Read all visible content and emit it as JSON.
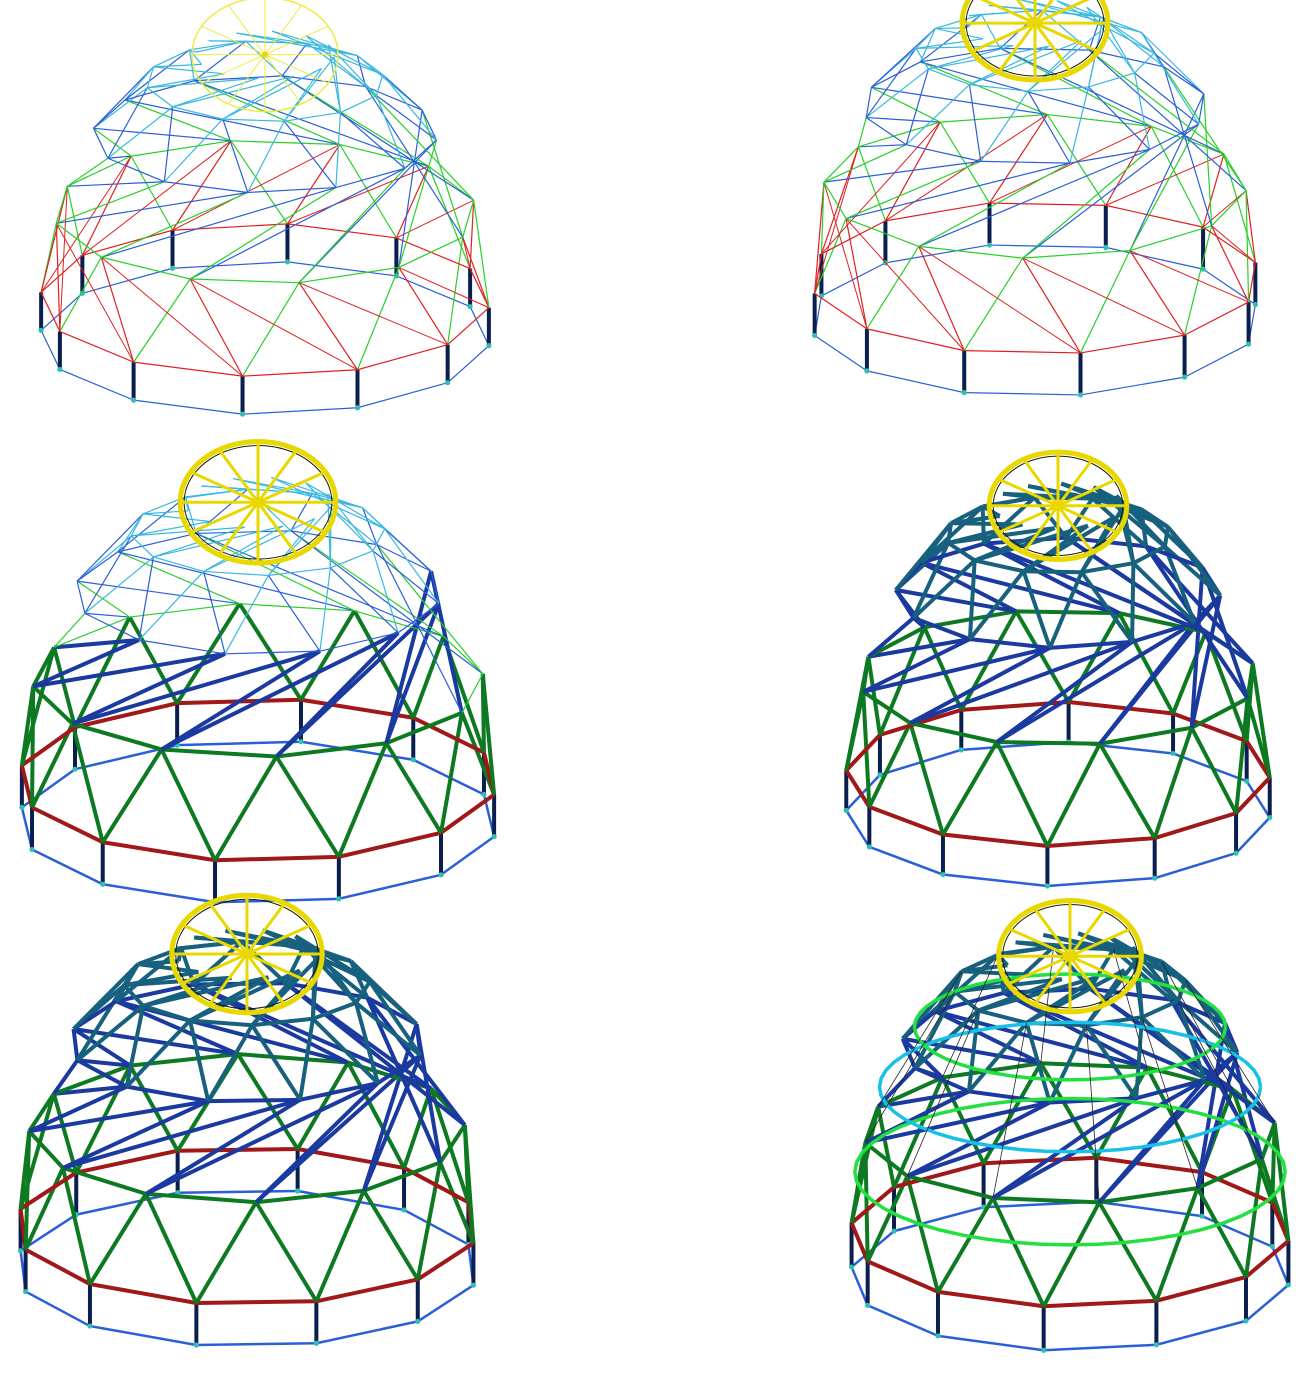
{
  "colors": {
    "background": "#ffffff",
    "ring_outer": "#e02020",
    "ring_mid": "#28d028",
    "ring_inner": "#2a5fd8",
    "ring_top": "#3ab8e0",
    "top_panel": "#f0e840",
    "top_panel_bold": "#e8d800",
    "column": "#0a1e50",
    "base_tie": "#2a5fd8",
    "support_node": "#30c0b0",
    "heavy_outer": "#a01818",
    "heavy_mid": "#0d7a22",
    "heavy_inner": "#1a3aa0",
    "heavy_top": "#17607e",
    "ring_beam_green": "#22e040",
    "ring_beam_cyan": "#18c0e8",
    "thin_black": "#222222"
  },
  "panels": [
    {
      "name": "stage-1-dome",
      "variant": "base",
      "highlight_top": false
    },
    {
      "name": "stage-2-dome",
      "variant": "base",
      "highlight_top": true
    },
    {
      "name": "stage-3-dome",
      "variant": "partial-ribs",
      "highlight_top": true
    },
    {
      "name": "stage-4-dome",
      "variant": "ribbed",
      "highlight_top": true
    },
    {
      "name": "stage-5-dome",
      "variant": "ribbed-full",
      "highlight_top": true
    },
    {
      "name": "stage-6-dome",
      "variant": "ribbed-with-rings",
      "highlight_top": true
    }
  ]
}
